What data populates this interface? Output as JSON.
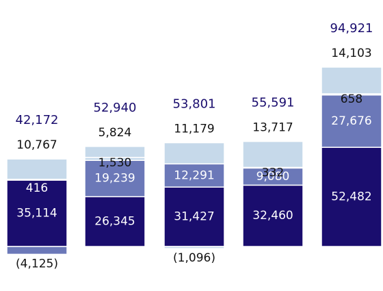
{
  "chart_data": {
    "type": "bar",
    "stacked": true,
    "series": [
      {
        "color": "#1a0d6e",
        "values": [
          35114,
          26345,
          31427,
          32460,
          52482
        ],
        "value_labels": [
          "35,114",
          "26,345",
          "31,427",
          "32,460",
          "52,482"
        ]
      },
      {
        "color": "#6b78b8",
        "values": [
          -4125,
          19239,
          12291,
          9080,
          27676
        ],
        "value_labels": [
          "(4,125)",
          "19,239",
          "12,291",
          "9,080",
          "27,676"
        ]
      },
      {
        "color": "#c6d9ea",
        "values": [
          416,
          1530,
          -1096,
          332,
          658
        ],
        "value_labels": [
          "416",
          "1,530",
          "(1,096)",
          "332",
          "658"
        ]
      },
      {
        "color": "#c6d9ea",
        "values": [
          10767,
          5824,
          11179,
          13717,
          14103
        ],
        "value_labels": [
          "10,767",
          "5,824",
          "11,179",
          "13,717",
          "14,103"
        ]
      }
    ],
    "totals": [
      42172,
      52940,
      53801,
      55591,
      94921
    ],
    "total_labels": [
      "42,172",
      "52,940",
      "53,801",
      "55,591",
      "94,921"
    ],
    "total_color": "#1a0d6e"
  }
}
